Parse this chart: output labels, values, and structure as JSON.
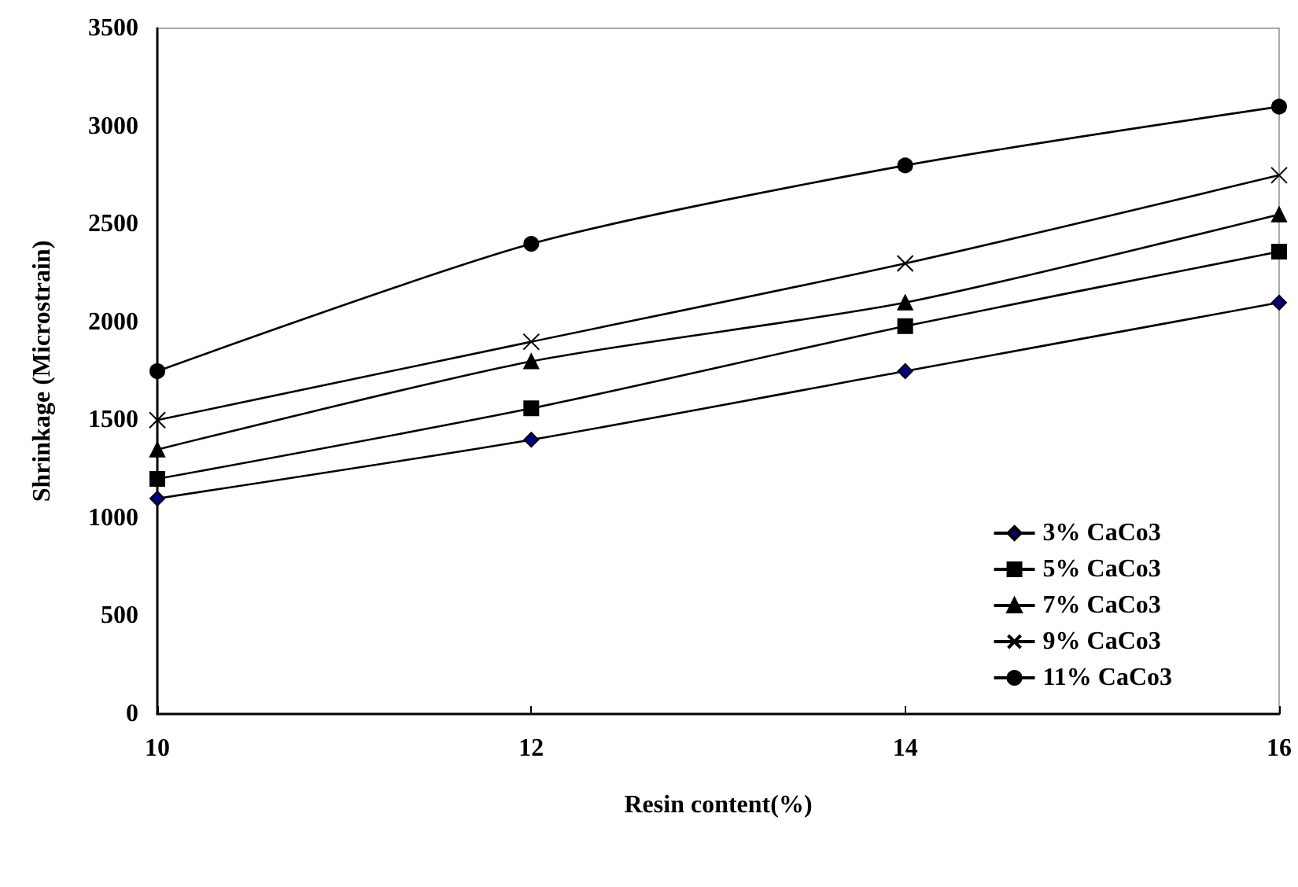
{
  "chart_data": {
    "type": "line",
    "xlabel": "Resin content(%)",
    "ylabel": "Shrinkage (Microstrain)",
    "x": [
      10,
      12,
      14,
      16
    ],
    "series": [
      {
        "name": "3% CaCo3",
        "color": "#000000",
        "marker": "diamond",
        "values": [
          1100,
          1400,
          1750,
          2100
        ]
      },
      {
        "name": "5% CaCo3",
        "color": "#000000",
        "marker": "square",
        "values": [
          1200,
          1560,
          1980,
          2360
        ]
      },
      {
        "name": "7% CaCo3",
        "color": "#000000",
        "marker": "triangle",
        "values": [
          1350,
          1800,
          2100,
          2550
        ]
      },
      {
        "name": "9% CaCo3",
        "color": "#000000",
        "marker": "cross",
        "values": [
          1500,
          1900,
          2300,
          2750
        ]
      },
      {
        "name": "11% CaCo3",
        "color": "#000000",
        "marker": "circle",
        "values": [
          1750,
          2400,
          2800,
          3100
        ]
      }
    ],
    "xlim": [
      10,
      16
    ],
    "xticks": [
      10,
      12,
      14,
      16
    ],
    "ylim": [
      0,
      3500
    ],
    "yticks": [
      0,
      500,
      1000,
      1500,
      2000,
      2500,
      3000,
      3500
    ],
    "grid": false,
    "legend": "bottom right",
    "line_style": "solid"
  }
}
